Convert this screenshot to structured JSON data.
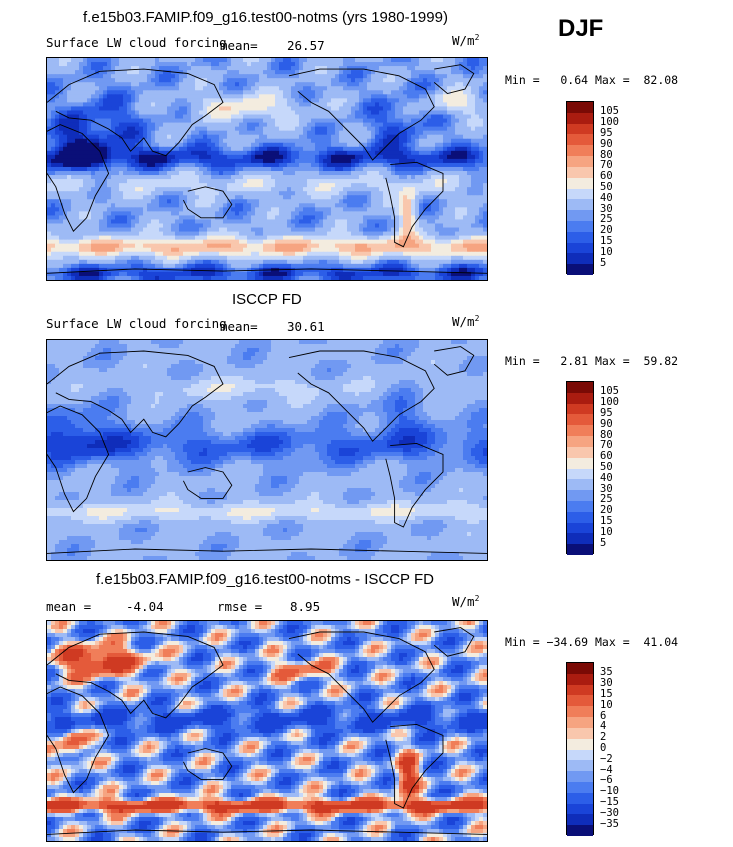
{
  "season": "DJF",
  "panels": [
    {
      "title": "f.e15b03.FAMIP.f09_g16.test00-notms (yrs 1980-1999)",
      "variable": "Surface LW cloud forcing",
      "stat1_label": "mean=",
      "stat1_value": "26.57",
      "stat2_label": "",
      "stat2_value": "",
      "units": "W/m",
      "units_exp": "2",
      "minmax": "Min =   0.64 Max =  82.08",
      "field": "model"
    },
    {
      "title": "ISCCP FD",
      "variable": "Surface LW cloud forcing",
      "stat1_label": "mean=",
      "stat1_value": "30.61",
      "stat2_label": "",
      "stat2_value": "",
      "units": "W/m",
      "units_exp": "2",
      "minmax": "Min =   2.81 Max =  59.82",
      "field": "obs"
    },
    {
      "title": "f.e15b03.FAMIP.f09_g16.test00-notms - ISCCP FD",
      "variable": "",
      "stat1_label": "mean =",
      "stat1_value": "-4.04",
      "stat2_label": "rmse =",
      "stat2_value": "8.95",
      "units": "W/m",
      "units_exp": "2",
      "minmax": "Min = −34.69 Max =  41.04",
      "field": "diff"
    }
  ],
  "chart_data": [
    {
      "type": "heatmap",
      "title": "f.e15b03.FAMIP.f09_g16.test00-notms (yrs 1980-1999)",
      "subtitle": "Surface LW cloud forcing",
      "units": "W/m2",
      "mean": 26.57,
      "min": 0.64,
      "max": 82.08,
      "colorbar_levels": [
        5,
        10,
        15,
        20,
        25,
        30,
        40,
        50,
        60,
        70,
        80,
        90,
        95,
        100,
        105
      ],
      "colorbar_labels": [
        "105",
        "100",
        "95",
        "90",
        "80",
        "70",
        "60",
        "50",
        "40",
        "30",
        "25",
        "20",
        "15",
        "10",
        "5"
      ]
    },
    {
      "type": "heatmap",
      "title": "ISCCP FD",
      "subtitle": "Surface LW cloud forcing",
      "units": "W/m2",
      "mean": 30.61,
      "min": 2.81,
      "max": 59.82,
      "colorbar_levels": [
        5,
        10,
        15,
        20,
        25,
        30,
        40,
        50,
        60,
        70,
        80,
        90,
        95,
        100,
        105
      ],
      "colorbar_labels": [
        "105",
        "100",
        "95",
        "90",
        "80",
        "70",
        "60",
        "50",
        "40",
        "30",
        "25",
        "20",
        "15",
        "10",
        "5"
      ]
    },
    {
      "type": "heatmap",
      "title": "f.e15b03.FAMIP.f09_g16.test00-notms - ISCCP FD",
      "units": "W/m2",
      "mean": -4.04,
      "rmse": 8.95,
      "min": -34.69,
      "max": 41.04,
      "colorbar_levels": [
        -35,
        -30,
        -15,
        -10,
        -6,
        -4,
        -2,
        0,
        2,
        4,
        6,
        10,
        15,
        30,
        35
      ],
      "colorbar_labels": [
        "35",
        "30",
        "15",
        "10",
        "6",
        "4",
        "2",
        "0",
        "−2",
        "−4",
        "−6",
        "−10",
        "−15",
        "−30",
        "−35"
      ]
    }
  ],
  "colors": {
    "palette": [
      "#0a0f78",
      "#0f2dba",
      "#1a44d8",
      "#2c5ee8",
      "#4b7cf0",
      "#7199f2",
      "#9dbaf5",
      "#c6d8fa",
      "#f3ecdf",
      "#f9c7ad",
      "#f6a481",
      "#f07e59",
      "#e45a3a",
      "#cf3a22",
      "#aa1c10",
      "#7a0a05"
    ]
  }
}
